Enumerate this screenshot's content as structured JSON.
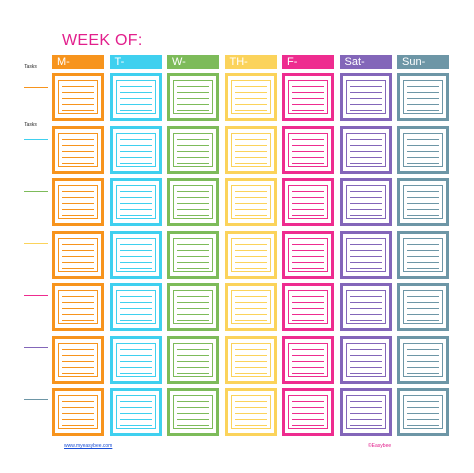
{
  "title": "WEEK OF:",
  "tasks_labels": [
    "Tasks",
    "Tasks"
  ],
  "days": [
    {
      "label": "M-",
      "color": "#f7941d",
      "light": "#fcd9a8"
    },
    {
      "label": "T-",
      "color": "#3fd0ef",
      "light": "#bdeffa"
    },
    {
      "label": "W-",
      "color": "#7dbb5a",
      "light": "#cfe6c1"
    },
    {
      "label": "TH-",
      "color": "#fbd35b",
      "light": "#fdeeb6"
    },
    {
      "label": "F-",
      "color": "#ee2c8f",
      "light": "#f9bfdd"
    },
    {
      "label": "Sat-",
      "color": "#8366b9",
      "light": "#d6cbeb"
    },
    {
      "label": "Sun-",
      "color": "#6d96a6",
      "light": "#c8d9e0"
    }
  ],
  "rows": 7,
  "task_line_colors": [
    "#f7941d",
    "#3fd0ef",
    "#7dbb5a",
    "#fbd35b",
    "#ee2c8f",
    "#8366b9",
    "#6d96a6"
  ],
  "footer": {
    "website": "www.myeasybee.com",
    "copyright": "©Easybee"
  }
}
